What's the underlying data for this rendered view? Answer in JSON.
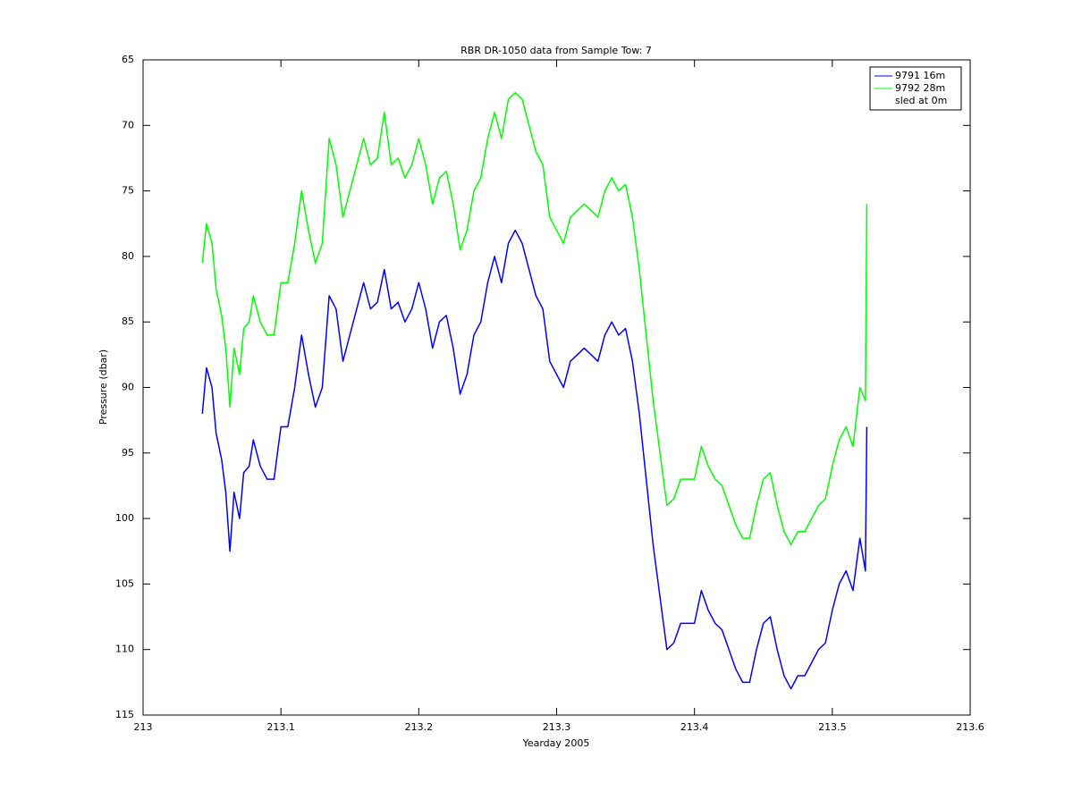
{
  "chart_data": {
    "type": "line",
    "title": "RBR DR-1050 data from Sample Tow: 7",
    "xlabel": "Yearday 2005",
    "ylabel": "Pressure (dbar)",
    "x": [
      213.043,
      213.046,
      213.05,
      213.053,
      213.057,
      213.06,
      213.063,
      213.066,
      213.07,
      213.073,
      213.077,
      213.08,
      213.085,
      213.09,
      213.095,
      213.1,
      213.105,
      213.11,
      213.115,
      213.12,
      213.125,
      213.13,
      213.135,
      213.14,
      213.145,
      213.15,
      213.155,
      213.16,
      213.165,
      213.17,
      213.175,
      213.18,
      213.185,
      213.19,
      213.195,
      213.2,
      213.205,
      213.21,
      213.215,
      213.22,
      213.225,
      213.23,
      213.235,
      213.24,
      213.245,
      213.25,
      213.255,
      213.26,
      213.265,
      213.27,
      213.275,
      213.28,
      213.285,
      213.29,
      213.295,
      213.3,
      213.305,
      213.31,
      213.315,
      213.32,
      213.325,
      213.33,
      213.335,
      213.34,
      213.345,
      213.35,
      213.355,
      213.36,
      213.365,
      213.37,
      213.375,
      213.38,
      213.385,
      213.39,
      213.395,
      213.4,
      213.405,
      213.41,
      213.415,
      213.42,
      213.425,
      213.43,
      213.435,
      213.44,
      213.445,
      213.45,
      213.455,
      213.46,
      213.465,
      213.47,
      213.475,
      213.48,
      213.485,
      213.49,
      213.495,
      213.5,
      213.505,
      213.51,
      213.515,
      213.52,
      213.524,
      213.525
    ],
    "series": [
      {
        "name": "9791 16m",
        "color": "#0000ff",
        "values": [
          92,
          88.5,
          90,
          93.5,
          95.5,
          98,
          102.5,
          98,
          100,
          96.5,
          96,
          94,
          96,
          97,
          97,
          93,
          93,
          90,
          86,
          89,
          91.5,
          90,
          83,
          84,
          88,
          86,
          84,
          82,
          84,
          83.5,
          81,
          84,
          83.5,
          85,
          84,
          82,
          84,
          87,
          85,
          84.5,
          87,
          90.5,
          89,
          86,
          85,
          82,
          80,
          82,
          79,
          78,
          79,
          81,
          83,
          84,
          88,
          89,
          90,
          88,
          87.5,
          87,
          87.5,
          88,
          86,
          85,
          86,
          85.5,
          88,
          92,
          97,
          102,
          106,
          110,
          109.5,
          108,
          108,
          108,
          105.5,
          107,
          108,
          108.5,
          110,
          111.5,
          112.5,
          112.5,
          110,
          108,
          107.5,
          110,
          112,
          113,
          112,
          112,
          111,
          110,
          109.5,
          107,
          105,
          104,
          105.5,
          101.5,
          104,
          93
        ]
      },
      {
        "name": "9792 28m",
        "color": "#00ff00",
        "values": [
          80.5,
          77.5,
          79,
          82.5,
          84.5,
          87,
          91.5,
          87,
          89,
          85.5,
          85,
          83,
          85,
          86,
          86,
          82,
          82,
          79,
          75,
          78,
          80.5,
          79,
          71,
          73,
          77,
          75,
          73,
          71,
          73,
          72.5,
          69,
          73,
          72.5,
          74,
          73,
          71,
          73,
          76,
          74,
          73.5,
          76,
          79.5,
          78,
          75,
          74,
          71,
          69,
          71,
          68,
          67.5,
          68,
          70,
          72,
          73,
          77,
          78,
          79,
          77,
          76.5,
          76,
          76.5,
          77,
          75,
          74,
          75,
          74.5,
          77,
          81,
          86,
          91,
          95,
          99,
          98.5,
          97,
          97,
          97,
          94.5,
          96,
          97,
          97.5,
          99,
          100.5,
          101.5,
          101.5,
          99,
          97,
          96.5,
          99,
          101,
          102,
          101,
          101,
          100,
          99,
          98.5,
          96,
          94,
          93,
          94.5,
          90,
          91,
          76
        ]
      },
      {
        "name": "sled at 0m",
        "color": "#ffffff",
        "values": [
          null,
          null,
          null,
          null,
          null,
          null,
          null,
          null,
          null,
          null,
          null,
          null,
          null,
          null,
          null,
          null,
          null,
          null,
          null,
          null,
          null,
          null,
          null,
          null,
          null,
          null,
          null,
          null,
          null,
          null,
          null,
          null,
          null,
          null,
          null,
          null,
          null,
          null,
          null,
          null,
          null,
          null,
          null,
          null,
          null,
          null,
          null,
          null,
          null,
          null,
          null,
          null,
          null,
          null,
          null,
          null,
          null,
          null,
          null,
          null,
          null,
          null,
          null,
          null,
          null,
          null,
          null,
          null,
          null,
          null,
          null,
          null,
          null,
          null,
          null,
          null,
          null,
          null,
          null,
          null,
          null,
          null,
          null,
          null,
          null,
          null,
          null,
          null,
          null,
          null,
          null,
          null,
          null,
          null,
          null,
          null,
          null,
          null,
          null,
          null,
          null,
          null
        ]
      }
    ],
    "xlim": [
      213,
      213.6
    ],
    "xticks": [
      213,
      213.1,
      213.2,
      213.3,
      213.4,
      213.5,
      213.6
    ],
    "ylim": [
      65,
      115
    ],
    "yticks": [
      65,
      70,
      75,
      80,
      85,
      90,
      95,
      100,
      105,
      110,
      115
    ],
    "y_reversed": true,
    "grid": false,
    "legend": "upper right"
  }
}
